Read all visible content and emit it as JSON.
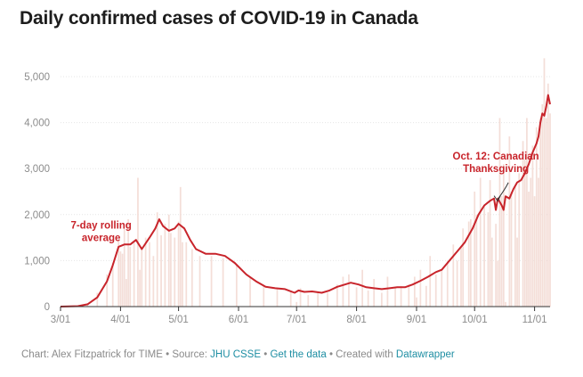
{
  "chart_data": {
    "type": "bar",
    "title": "Daily confirmed cases of COVID-19 in Canada",
    "xlabel": "",
    "ylabel": "",
    "ylim": [
      0,
      5000
    ],
    "y_ticks": [
      0,
      1000,
      2000,
      3000,
      4000,
      5000
    ],
    "y_tick_labels": [
      "0",
      "1,000",
      "2,000",
      "3,000",
      "4,000",
      "5,000"
    ],
    "x_ticks": [
      "3/01",
      "4/01",
      "5/01",
      "6/01",
      "7/01",
      "8/01",
      "9/01",
      "10/01",
      "11/01"
    ],
    "grid": "horizontal",
    "x_range": [
      "2020-03-01",
      "2020-11-09"
    ],
    "series": [
      {
        "style": "bars",
        "points": [
          [
            "2020-03-01",
            0
          ],
          [
            "2020-03-10",
            10
          ],
          [
            "2020-03-15",
            60
          ],
          [
            "2020-03-20",
            300
          ],
          [
            "2020-03-25",
            700
          ],
          [
            "2020-03-28",
            950
          ],
          [
            "2020-03-31",
            1450
          ],
          [
            "2020-04-01",
            1200
          ],
          [
            "2020-04-02",
            1150
          ],
          [
            "2020-04-03",
            1700
          ],
          [
            "2020-04-04",
            600
          ],
          [
            "2020-04-05",
            1900
          ],
          [
            "2020-04-06",
            1300
          ],
          [
            "2020-04-08",
            1400
          ],
          [
            "2020-04-10",
            2800
          ],
          [
            "2020-04-11",
            800
          ],
          [
            "2020-04-12",
            1300
          ],
          [
            "2020-04-14",
            1500
          ],
          [
            "2020-04-16",
            1400
          ],
          [
            "2020-04-18",
            1100
          ],
          [
            "2020-04-20",
            2050
          ],
          [
            "2020-04-22",
            1550
          ],
          [
            "2020-04-24",
            1800
          ],
          [
            "2020-04-26",
            2000
          ],
          [
            "2020-04-27",
            1600
          ],
          [
            "2020-04-29",
            1500
          ],
          [
            "2020-05-01",
            1850
          ],
          [
            "2020-05-02",
            2600
          ],
          [
            "2020-05-03",
            1400
          ],
          [
            "2020-05-05",
            1400
          ],
          [
            "2020-05-08",
            1250
          ],
          [
            "2020-05-12",
            1100
          ],
          [
            "2020-05-18",
            1100
          ],
          [
            "2020-05-24",
            1050
          ],
          [
            "2020-05-31",
            900
          ],
          [
            "2020-06-07",
            650
          ],
          [
            "2020-06-14",
            450
          ],
          [
            "2020-06-21",
            380
          ],
          [
            "2020-06-28",
            350
          ],
          [
            "2020-07-01",
            100
          ],
          [
            "2020-07-03",
            400
          ],
          [
            "2020-07-07",
            250
          ],
          [
            "2020-07-12",
            320
          ],
          [
            "2020-07-17",
            300
          ],
          [
            "2020-07-22",
            480
          ],
          [
            "2020-07-25",
            650
          ],
          [
            "2020-07-28",
            700
          ],
          [
            "2020-08-01",
            420
          ],
          [
            "2020-08-04",
            800
          ],
          [
            "2020-08-07",
            350
          ],
          [
            "2020-08-10",
            600
          ],
          [
            "2020-08-14",
            300
          ],
          [
            "2020-08-17",
            650
          ],
          [
            "2020-08-21",
            400
          ],
          [
            "2020-08-24",
            450
          ],
          [
            "2020-08-28",
            480
          ],
          [
            "2020-08-31",
            650
          ],
          [
            "2020-09-01",
            200
          ],
          [
            "2020-09-03",
            800
          ],
          [
            "2020-09-06",
            450
          ],
          [
            "2020-09-08",
            1100
          ],
          [
            "2020-09-11",
            700
          ],
          [
            "2020-09-14",
            800
          ],
          [
            "2020-09-17",
            1000
          ],
          [
            "2020-09-20",
            1350
          ],
          [
            "2020-09-22",
            1000
          ],
          [
            "2020-09-24",
            1300
          ],
          [
            "2020-09-25",
            1700
          ],
          [
            "2020-09-28",
            1850
          ],
          [
            "2020-09-29",
            1900
          ],
          [
            "2020-10-01",
            2500
          ],
          [
            "2020-10-02",
            2000
          ],
          [
            "2020-10-04",
            2800
          ],
          [
            "2020-10-06",
            2200
          ],
          [
            "2020-10-08",
            2050
          ],
          [
            "2020-10-09",
            2750
          ],
          [
            "2020-10-10",
            1500
          ],
          [
            "2020-10-12",
            1800
          ],
          [
            "2020-10-13",
            1000
          ],
          [
            "2020-10-14",
            4100
          ],
          [
            "2020-10-15",
            2400
          ],
          [
            "2020-10-16",
            3100
          ],
          [
            "2020-10-17",
            100
          ],
          [
            "2020-10-19",
            3700
          ],
          [
            "2020-10-20",
            2500
          ],
          [
            "2020-10-22",
            2600
          ],
          [
            "2020-10-23",
            1500
          ],
          [
            "2020-10-24",
            2900
          ],
          [
            "2020-10-26",
            3600
          ],
          [
            "2020-10-27",
            3200
          ],
          [
            "2020-10-28",
            4100
          ],
          [
            "2020-10-29",
            2500
          ],
          [
            "2020-10-30",
            2800
          ],
          [
            "2020-10-31",
            3500
          ],
          [
            "2020-11-01",
            2400
          ],
          [
            "2020-11-02",
            3900
          ],
          [
            "2020-11-03",
            2800
          ],
          [
            "2020-11-04",
            4100
          ],
          [
            "2020-11-05",
            4400
          ],
          [
            "2020-11-06",
            5400
          ],
          [
            "2020-11-07",
            4100
          ],
          [
            "2020-11-08",
            4850
          ],
          [
            "2020-11-09",
            4200
          ]
        ]
      },
      {
        "style": "line",
        "name": "7-day rolling average",
        "points": [
          [
            "2020-03-01",
            0
          ],
          [
            "2020-03-10",
            10
          ],
          [
            "2020-03-15",
            50
          ],
          [
            "2020-03-20",
            200
          ],
          [
            "2020-03-25",
            550
          ],
          [
            "2020-03-28",
            900
          ],
          [
            "2020-03-31",
            1300
          ],
          [
            "2020-04-03",
            1350
          ],
          [
            "2020-04-06",
            1350
          ],
          [
            "2020-04-09",
            1450
          ],
          [
            "2020-04-12",
            1250
          ],
          [
            "2020-04-16",
            1500
          ],
          [
            "2020-04-19",
            1700
          ],
          [
            "2020-04-21",
            1900
          ],
          [
            "2020-04-23",
            1750
          ],
          [
            "2020-04-26",
            1650
          ],
          [
            "2020-04-29",
            1700
          ],
          [
            "2020-05-01",
            1800
          ],
          [
            "2020-05-04",
            1700
          ],
          [
            "2020-05-07",
            1450
          ],
          [
            "2020-05-10",
            1250
          ],
          [
            "2020-05-15",
            1150
          ],
          [
            "2020-05-20",
            1150
          ],
          [
            "2020-05-25",
            1100
          ],
          [
            "2020-05-30",
            950
          ],
          [
            "2020-06-05",
            700
          ],
          [
            "2020-06-10",
            550
          ],
          [
            "2020-06-15",
            430
          ],
          [
            "2020-06-20",
            400
          ],
          [
            "2020-06-25",
            380
          ],
          [
            "2020-06-30",
            300
          ],
          [
            "2020-07-02",
            350
          ],
          [
            "2020-07-05",
            320
          ],
          [
            "2020-07-09",
            330
          ],
          [
            "2020-07-14",
            300
          ],
          [
            "2020-07-18",
            350
          ],
          [
            "2020-07-22",
            430
          ],
          [
            "2020-07-26",
            480
          ],
          [
            "2020-07-29",
            520
          ],
          [
            "2020-08-02",
            480
          ],
          [
            "2020-08-06",
            420
          ],
          [
            "2020-08-10",
            400
          ],
          [
            "2020-08-14",
            380
          ],
          [
            "2020-08-18",
            400
          ],
          [
            "2020-08-22",
            420
          ],
          [
            "2020-08-26",
            420
          ],
          [
            "2020-08-30",
            480
          ],
          [
            "2020-09-03",
            560
          ],
          [
            "2020-09-07",
            650
          ],
          [
            "2020-09-11",
            750
          ],
          [
            "2020-09-14",
            800
          ],
          [
            "2020-09-18",
            1000
          ],
          [
            "2020-09-22",
            1200
          ],
          [
            "2020-09-26",
            1400
          ],
          [
            "2020-09-30",
            1700
          ],
          [
            "2020-10-03",
            2000
          ],
          [
            "2020-10-06",
            2200
          ],
          [
            "2020-10-09",
            2300
          ],
          [
            "2020-10-11",
            2350
          ],
          [
            "2020-10-12",
            2100
          ],
          [
            "2020-10-13",
            2350
          ],
          [
            "2020-10-15",
            2200
          ],
          [
            "2020-10-16",
            2100
          ],
          [
            "2020-10-17",
            2400
          ],
          [
            "2020-10-19",
            2350
          ],
          [
            "2020-10-21",
            2550
          ],
          [
            "2020-10-23",
            2700
          ],
          [
            "2020-10-25",
            2750
          ],
          [
            "2020-10-27",
            2900
          ],
          [
            "2020-10-29",
            3100
          ],
          [
            "2020-10-31",
            3350
          ],
          [
            "2020-11-02",
            3550
          ],
          [
            "2020-11-03",
            3700
          ],
          [
            "2020-11-04",
            4000
          ],
          [
            "2020-11-05",
            4200
          ],
          [
            "2020-11-06",
            4150
          ],
          [
            "2020-11-07",
            4350
          ],
          [
            "2020-11-08",
            4600
          ],
          [
            "2020-11-09",
            4400
          ]
        ]
      }
    ],
    "annotations": [
      {
        "lines": [
          "7-day rolling",
          "average"
        ],
        "x": "2020-03-22",
        "y": 1700
      },
      {
        "lines": [
          "Oct. 12: Canadian",
          "Thanksgiving"
        ],
        "x": "2020-10-12",
        "y": 3200,
        "target": [
          "2020-10-12",
          2100
        ]
      }
    ]
  },
  "colors": {
    "bars": "#f4ded8",
    "line": "#c8242b",
    "grid": "#e6e6e6",
    "axis": "#333333",
    "tick_text": "#8c8c8c",
    "link": "#1e8ea3"
  },
  "footer": {
    "prefix": "Chart: Alex Fitzpatrick for TIME • Source: ",
    "source_link": "JHU CSSE",
    "sep1": " • ",
    "data_link": "Get the data",
    "sep2": " • Created with ",
    "tool_link": "Datawrapper"
  }
}
